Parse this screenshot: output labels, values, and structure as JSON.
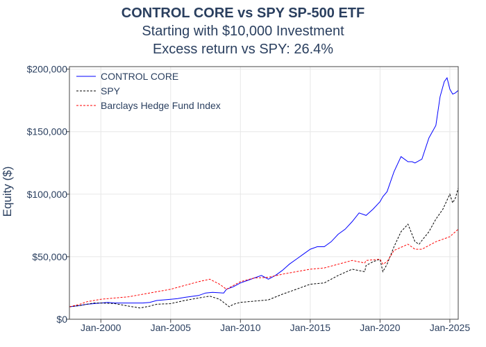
{
  "chart_data": {
    "type": "line",
    "title": "CONTROL CORE vs SPY SP-500 ETF",
    "subtitle_lines": [
      "Starting with $10,000 Investment",
      "Excess return vs SPY: 26.4%"
    ],
    "ylabel": "Equity ($)",
    "xlabel": "",
    "x_range": [
      1997.75,
      2025.6
    ],
    "ylim": [
      0,
      202000
    ],
    "y_ticks": [
      0,
      50000,
      100000,
      150000,
      200000
    ],
    "y_tick_labels": [
      "$0",
      "$50,000",
      "$100,000",
      "$150,000",
      "$200,000"
    ],
    "x_ticks": [
      2000,
      2005,
      2010,
      2015,
      2020,
      2025
    ],
    "x_tick_labels": [
      "Jan-2000",
      "Jan-2005",
      "Jan-2010",
      "Jan-2015",
      "Jan-2020",
      "Jan-2025"
    ],
    "grid": true,
    "legend_position": "top-left",
    "series": [
      {
        "name": "CONTROL CORE",
        "color": "#0000ff",
        "dash": "solid",
        "x": [
          1997.75,
          1998.5,
          1999,
          1999.5,
          2000,
          2000.5,
          2001,
          2002,
          2003,
          2003.5,
          2004,
          2004.5,
          2005,
          2005.5,
          2006,
          2007,
          2007.5,
          2008,
          2008.8,
          2009,
          2009.5,
          2010,
          2010.5,
          2011,
          2011.5,
          2012,
          2012.5,
          2013,
          2013.5,
          2014,
          2014.5,
          2015,
          2015.5,
          2016,
          2016.5,
          2017,
          2017.5,
          2018,
          2018.5,
          2019,
          2019.5,
          2020,
          2020.2,
          2020.5,
          2021,
          2021.5,
          2022,
          2022.3,
          2022.5,
          2023,
          2023.5,
          2024,
          2024.3,
          2024.6,
          2024.8,
          2025,
          2025.2,
          2025.4,
          2025.6
        ],
        "y": [
          10000,
          11000,
          12000,
          12500,
          13000,
          13500,
          13000,
          13000,
          13000,
          13500,
          15000,
          15500,
          16000,
          16500,
          17500,
          19000,
          21000,
          21500,
          21000,
          24000,
          26000,
          29000,
          31000,
          33000,
          35000,
          32000,
          35000,
          39000,
          44000,
          48000,
          52000,
          56000,
          58000,
          58000,
          62000,
          68000,
          72000,
          78000,
          85000,
          83000,
          88000,
          94000,
          98000,
          102000,
          118000,
          130000,
          126000,
          126000,
          125000,
          128000,
          145000,
          155000,
          178000,
          190000,
          193000,
          184000,
          180000,
          181000,
          183000
        ]
      },
      {
        "name": "SPY",
        "color": "#000000",
        "dash": "3,2",
        "x": [
          1997.75,
          1998.5,
          1999,
          1999.5,
          2000,
          2001,
          2002,
          2002.8,
          2003.5,
          2004,
          2005,
          2006,
          2007,
          2007.8,
          2008.5,
          2009.2,
          2009.5,
          2010,
          2011,
          2012,
          2013,
          2014,
          2015,
          2016,
          2017,
          2018,
          2018.9,
          2019,
          2019.5,
          2020,
          2020.2,
          2020.5,
          2021,
          2021.5,
          2022,
          2022.5,
          2022.8,
          2023,
          2023.5,
          2024,
          2024.5,
          2025,
          2025.2,
          2025.4,
          2025.6
        ],
        "y": [
          10000,
          11000,
          12000,
          13000,
          13000,
          12500,
          10500,
          9000,
          10500,
          12000,
          12500,
          15000,
          17000,
          18500,
          16000,
          10000,
          12000,
          13500,
          14500,
          15500,
          20000,
          24000,
          28000,
          29000,
          35000,
          40000,
          38000,
          43000,
          46000,
          48000,
          38000,
          44000,
          58000,
          70000,
          76000,
          62000,
          60000,
          63000,
          70000,
          80000,
          88000,
          100000,
          93000,
          97000,
          105000
        ]
      },
      {
        "name": "Barclays Hedge Fund Index",
        "color": "#ff0000",
        "dash": "3,2",
        "x": [
          1997.75,
          1998.5,
          1999,
          2000,
          2001,
          2002,
          2003,
          2004,
          2005,
          2006,
          2007,
          2007.8,
          2008.5,
          2009,
          2009.5,
          2010,
          2011,
          2012,
          2013,
          2014,
          2015,
          2016,
          2017,
          2018,
          2018.9,
          2019,
          2020,
          2020.2,
          2020.5,
          2021,
          2022,
          2022.5,
          2023,
          2024,
          2025,
          2025.6
        ],
        "y": [
          10000,
          12000,
          14000,
          16000,
          17000,
          18000,
          20000,
          22000,
          24000,
          27000,
          30000,
          32000,
          28000,
          24000,
          27000,
          30000,
          33000,
          33500,
          36000,
          38000,
          40000,
          41000,
          44000,
          47000,
          45000,
          47000,
          48000,
          44000,
          46000,
          55000,
          60000,
          56000,
          56000,
          62000,
          66000,
          72000
        ]
      }
    ]
  }
}
